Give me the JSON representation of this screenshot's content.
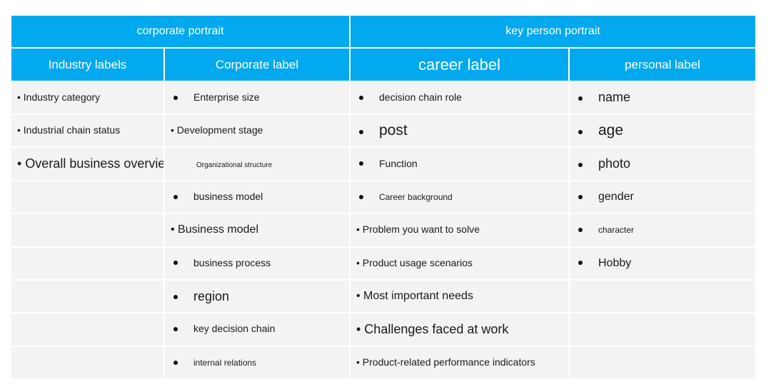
{
  "header": {
    "corporate_portrait": "corporate portrait",
    "key_person_portrait": "key person portrait"
  },
  "columns": {
    "industry_labels": "Industry labels",
    "corporate_label": "Corporate label",
    "career_label": "career label",
    "personal_label": "personal label"
  },
  "rows": [
    {
      "industry": "• Industry category",
      "corporate": "Enterprise size",
      "career": "decision chain role",
      "personal": "name"
    },
    {
      "industry": "• Industrial chain status",
      "corporate": "• Development stage",
      "career": "post",
      "personal": "age"
    },
    {
      "industry": "• Overall business overview ·",
      "corporate": "Organizational structure",
      "career": "Function",
      "personal": "photo"
    },
    {
      "industry": "",
      "corporate": "business model",
      "career": "Career background",
      "personal": "gender"
    },
    {
      "industry": "",
      "corporate": "• Business model",
      "career": "• Problem you want to solve",
      "personal": "character"
    },
    {
      "industry": "",
      "corporate": "business process",
      "career": "• Product usage scenarios",
      "personal": "Hobby"
    },
    {
      "industry": "",
      "corporate": "region",
      "career": "• Most important needs",
      "personal": ""
    },
    {
      "industry": "",
      "corporate": "key decision chain",
      "career": "• Challenges faced at work",
      "personal": ""
    },
    {
      "industry": "",
      "corporate": "internal relations",
      "career": "• Product-related performance indicators",
      "personal": ""
    }
  ]
}
